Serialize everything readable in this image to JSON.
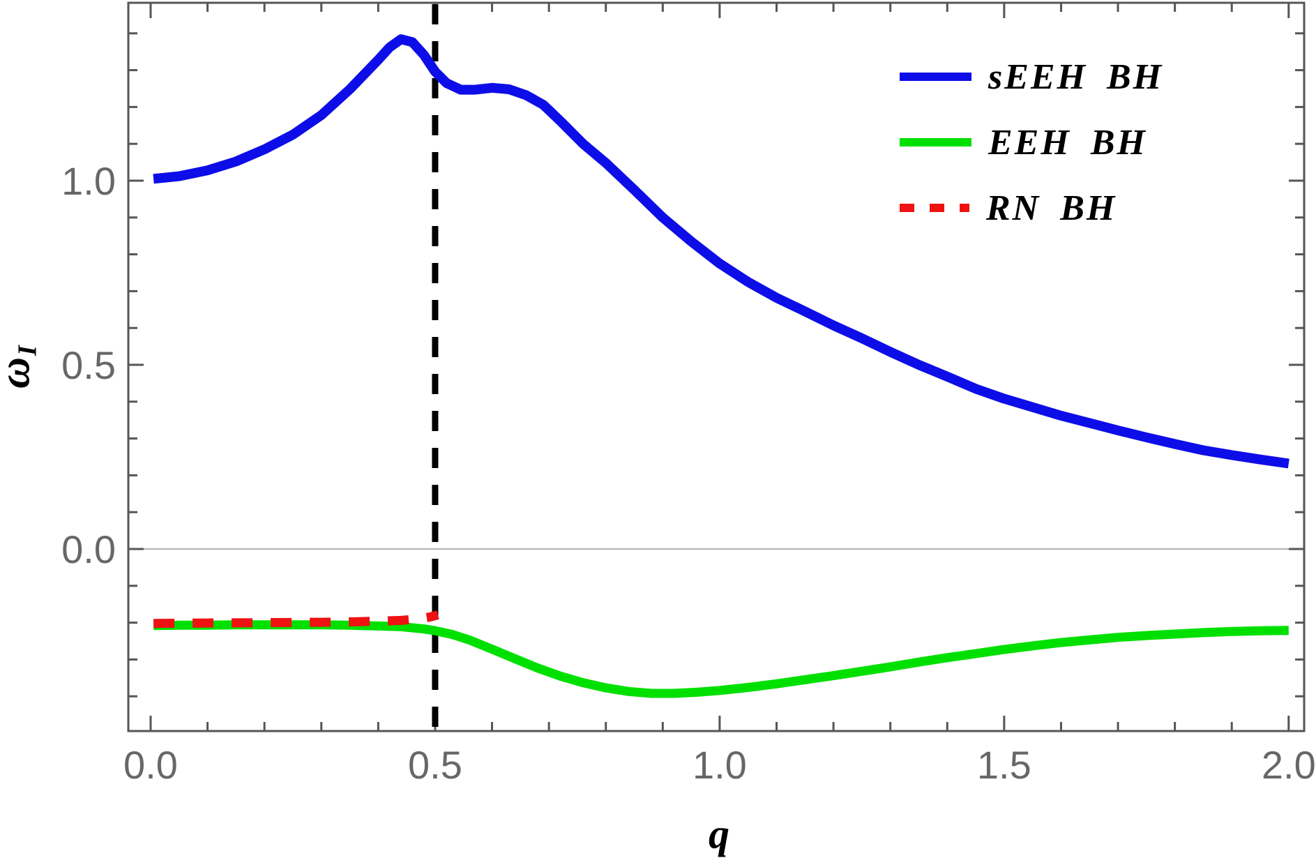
{
  "figure": {
    "background": "#ffffff",
    "frame_color": "#555555",
    "tick_label_color": "#676767",
    "zero_line_color": "#9a9a9a",
    "dashed_guide_color": "#000000"
  },
  "axes": {
    "x": {
      "label": "q",
      "tick_labels": [
        "0.0",
        "0.5",
        "1.0",
        "1.5",
        "2.0"
      ],
      "major_ticks": [
        0.0,
        0.5,
        1.0,
        1.5,
        2.0
      ],
      "minor_step": 0.1
    },
    "y": {
      "label": "ω",
      "label_subscript": "I",
      "tick_labels": [
        "0.0",
        "0.5",
        "1.0"
      ],
      "major_ticks": [
        0.0,
        0.5,
        1.0
      ],
      "minor_step": 0.1
    }
  },
  "legend": [
    {
      "label": "sEEH BH",
      "color": "#0d0de8",
      "style": "solid"
    },
    {
      "label": "EEH BH",
      "color": "#00e000",
      "style": "solid"
    },
    {
      "label": "RN BH",
      "color": "#ee1212",
      "style": "dashed"
    }
  ],
  "chart_data": {
    "type": "line",
    "title": "",
    "xlabel": "q",
    "ylabel": "ω_I",
    "xlim": [
      -0.0392,
      2.0272
    ],
    "ylim": [
      -0.4943,
      1.4829
    ],
    "grid": false,
    "legend_position": "top-right",
    "annotations": {
      "vertical_dashed_line_x": 0.5,
      "horizontal_line_y": 0.0
    },
    "series": [
      {
        "name": "sEEH BH",
        "color": "#0d0de8",
        "style": "solid",
        "points": [
          [
            0.005,
            1.005
          ],
          [
            0.05,
            1.012
          ],
          [
            0.1,
            1.028
          ],
          [
            0.15,
            1.052
          ],
          [
            0.2,
            1.085
          ],
          [
            0.25,
            1.125
          ],
          [
            0.3,
            1.178
          ],
          [
            0.35,
            1.248
          ],
          [
            0.4,
            1.328
          ],
          [
            0.42,
            1.362
          ],
          [
            0.44,
            1.384
          ],
          [
            0.46,
            1.376
          ],
          [
            0.48,
            1.342
          ],
          [
            0.5,
            1.296
          ],
          [
            0.52,
            1.265
          ],
          [
            0.545,
            1.247
          ],
          [
            0.57,
            1.247
          ],
          [
            0.6,
            1.252
          ],
          [
            0.63,
            1.248
          ],
          [
            0.66,
            1.232
          ],
          [
            0.69,
            1.206
          ],
          [
            0.72,
            1.162
          ],
          [
            0.76,
            1.1
          ],
          [
            0.8,
            1.048
          ],
          [
            0.85,
            0.975
          ],
          [
            0.9,
            0.9
          ],
          [
            0.95,
            0.835
          ],
          [
            1.0,
            0.775
          ],
          [
            1.05,
            0.725
          ],
          [
            1.1,
            0.682
          ],
          [
            1.15,
            0.645
          ],
          [
            1.2,
            0.607
          ],
          [
            1.25,
            0.572
          ],
          [
            1.3,
            0.535
          ],
          [
            1.35,
            0.5
          ],
          [
            1.4,
            0.468
          ],
          [
            1.45,
            0.435
          ],
          [
            1.5,
            0.408
          ],
          [
            1.55,
            0.385
          ],
          [
            1.6,
            0.362
          ],
          [
            1.65,
            0.342
          ],
          [
            1.7,
            0.322
          ],
          [
            1.75,
            0.303
          ],
          [
            1.8,
            0.285
          ],
          [
            1.85,
            0.268
          ],
          [
            1.9,
            0.255
          ],
          [
            1.95,
            0.243
          ],
          [
            2.0,
            0.232
          ]
        ]
      },
      {
        "name": "EEH BH",
        "color": "#00e000",
        "style": "solid",
        "points": [
          [
            0.005,
            -0.208
          ],
          [
            0.05,
            -0.207
          ],
          [
            0.1,
            -0.207
          ],
          [
            0.15,
            -0.206
          ],
          [
            0.2,
            -0.206
          ],
          [
            0.25,
            -0.206
          ],
          [
            0.3,
            -0.206
          ],
          [
            0.35,
            -0.207
          ],
          [
            0.4,
            -0.209
          ],
          [
            0.44,
            -0.211
          ],
          [
            0.48,
            -0.217
          ],
          [
            0.5,
            -0.222
          ],
          [
            0.53,
            -0.232
          ],
          [
            0.56,
            -0.247
          ],
          [
            0.6,
            -0.272
          ],
          [
            0.64,
            -0.298
          ],
          [
            0.68,
            -0.323
          ],
          [
            0.72,
            -0.345
          ],
          [
            0.76,
            -0.363
          ],
          [
            0.8,
            -0.377
          ],
          [
            0.84,
            -0.387
          ],
          [
            0.88,
            -0.392
          ],
          [
            0.92,
            -0.392
          ],
          [
            0.96,
            -0.389
          ],
          [
            1.0,
            -0.384
          ],
          [
            1.05,
            -0.376
          ],
          [
            1.1,
            -0.366
          ],
          [
            1.15,
            -0.355
          ],
          [
            1.2,
            -0.344
          ],
          [
            1.25,
            -0.332
          ],
          [
            1.3,
            -0.32
          ],
          [
            1.35,
            -0.307
          ],
          [
            1.4,
            -0.295
          ],
          [
            1.45,
            -0.284
          ],
          [
            1.5,
            -0.273
          ],
          [
            1.55,
            -0.263
          ],
          [
            1.6,
            -0.254
          ],
          [
            1.65,
            -0.247
          ],
          [
            1.7,
            -0.24
          ],
          [
            1.75,
            -0.235
          ],
          [
            1.8,
            -0.231
          ],
          [
            1.85,
            -0.227
          ],
          [
            1.9,
            -0.224
          ],
          [
            1.95,
            -0.222
          ],
          [
            2.0,
            -0.221
          ]
        ]
      },
      {
        "name": "RN BH",
        "color": "#ee1212",
        "style": "dashed",
        "points": [
          [
            0.005,
            -0.202
          ],
          [
            0.05,
            -0.2015
          ],
          [
            0.1,
            -0.201
          ],
          [
            0.15,
            -0.2005
          ],
          [
            0.2,
            -0.2
          ],
          [
            0.25,
            -0.1995
          ],
          [
            0.3,
            -0.199
          ],
          [
            0.35,
            -0.198
          ],
          [
            0.4,
            -0.196
          ],
          [
            0.44,
            -0.194
          ],
          [
            0.47,
            -0.19
          ],
          [
            0.49,
            -0.185
          ],
          [
            0.505,
            -0.179
          ]
        ]
      }
    ]
  }
}
